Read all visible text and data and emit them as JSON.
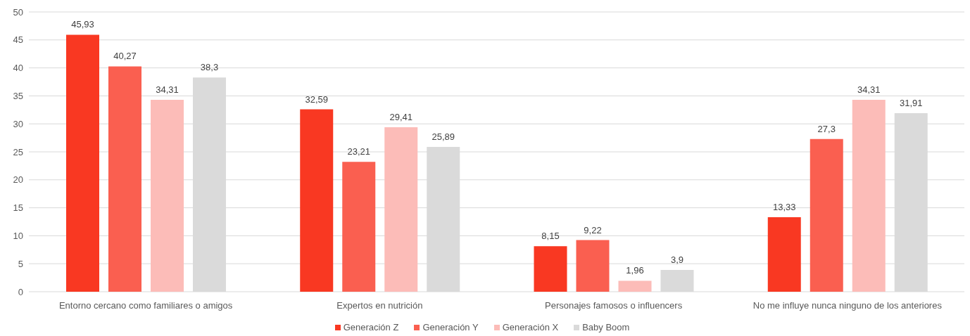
{
  "chart_data": {
    "type": "bar",
    "categories": [
      "Entorno cercano como familiares o amigos",
      "Expertos en nutrición",
      "Personajes famosos o influencers",
      "No me influye nunca ninguno de los anteriores"
    ],
    "series": [
      {
        "name": "Generación Z",
        "color": "#f93822",
        "values": [
          45.93,
          32.59,
          8.15,
          13.33
        ],
        "value_labels": [
          "45,93",
          "32,59",
          "8,15",
          "13,33"
        ]
      },
      {
        "name": "Generación Y",
        "color": "#fa5f50",
        "values": [
          40.27,
          23.21,
          9.22,
          27.3
        ],
        "value_labels": [
          "40,27",
          "23,21",
          "9,22",
          "27,3"
        ]
      },
      {
        "name": "Generación X",
        "color": "#fcbcb8",
        "values": [
          34.31,
          29.41,
          1.96,
          34.31
        ],
        "value_labels": [
          "34,31",
          "29,41",
          "1,96",
          "34,31"
        ]
      },
      {
        "name": "Baby Boom",
        "color": "#dadada",
        "values": [
          38.3,
          25.89,
          3.9,
          31.91
        ],
        "value_labels": [
          "38,3",
          "25,89",
          "3,9",
          "31,91"
        ]
      }
    ],
    "ylim": [
      0,
      50
    ],
    "yticks": [
      0,
      5,
      10,
      15,
      20,
      25,
      30,
      35,
      40,
      45,
      50
    ],
    "grid": "y",
    "legend": "bottom"
  }
}
